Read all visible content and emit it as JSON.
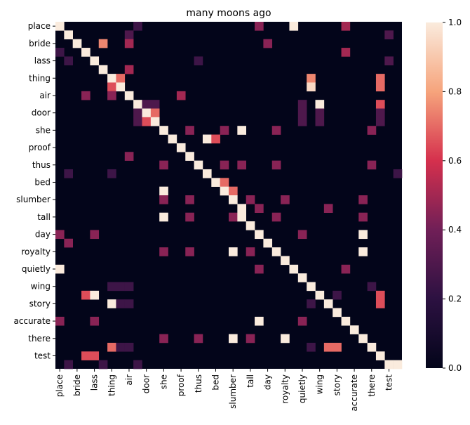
{
  "chart_data": {
    "type": "heatmap",
    "title": "many moons ago",
    "xlabel": "",
    "ylabel": "",
    "labels": [
      "place",
      "bride",
      "lass",
      "thing",
      "air",
      "door",
      "she",
      "proof",
      "thus",
      "bed",
      "slumber",
      "tall",
      "day",
      "royalty",
      "quietly",
      "wing",
      "story",
      "accurate",
      "there",
      "test"
    ],
    "tick_labels": [
      "place",
      "bride",
      "lass",
      "thing",
      "air",
      "door",
      "she",
      "proof",
      "thus",
      "bed",
      "slumber",
      "tall",
      "day",
      "royalty",
      "quietly",
      "wing",
      "story",
      "accurate",
      "there",
      "test"
    ],
    "n_rows": 40,
    "n_cols": 40,
    "cells": [
      [
        0,
        0,
        1.0
      ],
      [
        0,
        9,
        0.25
      ],
      [
        0,
        23,
        0.45
      ],
      [
        0,
        27,
        1.0
      ],
      [
        0,
        33,
        0.5
      ],
      [
        1,
        1,
        1.0
      ],
      [
        1,
        8,
        0.3
      ],
      [
        1,
        38,
        0.3
      ],
      [
        2,
        2,
        1.0
      ],
      [
        2,
        5,
        0.75
      ],
      [
        2,
        8,
        0.5
      ],
      [
        2,
        24,
        0.45
      ],
      [
        3,
        0,
        0.25
      ],
      [
        3,
        3,
        1.0
      ],
      [
        3,
        33,
        0.5
      ],
      [
        4,
        1,
        0.25
      ],
      [
        4,
        4,
        1.0
      ],
      [
        4,
        16,
        0.25
      ],
      [
        4,
        38,
        0.3
      ],
      [
        5,
        5,
        1.0
      ],
      [
        5,
        8,
        0.5
      ],
      [
        6,
        6,
        1.0
      ],
      [
        6,
        7,
        0.7
      ],
      [
        6,
        29,
        0.75
      ],
      [
        6,
        37,
        0.7
      ],
      [
        7,
        6,
        0.65
      ],
      [
        7,
        7,
        1.0
      ],
      [
        7,
        29,
        0.95
      ],
      [
        7,
        37,
        0.7
      ],
      [
        8,
        3,
        0.45
      ],
      [
        8,
        6,
        0.45
      ],
      [
        8,
        8,
        1.0
      ],
      [
        8,
        14,
        0.5
      ],
      [
        9,
        9,
        1.0
      ],
      [
        9,
        10,
        0.3
      ],
      [
        9,
        11,
        0.3
      ],
      [
        9,
        28,
        0.3
      ],
      [
        9,
        30,
        1.0
      ],
      [
        9,
        37,
        0.65
      ],
      [
        10,
        9,
        0.3
      ],
      [
        10,
        10,
        1.0
      ],
      [
        10,
        11,
        0.7
      ],
      [
        10,
        28,
        0.3
      ],
      [
        10,
        30,
        0.3
      ],
      [
        10,
        37,
        0.3
      ],
      [
        11,
        9,
        0.3
      ],
      [
        11,
        10,
        0.65
      ],
      [
        11,
        11,
        1.0
      ],
      [
        11,
        28,
        0.3
      ],
      [
        11,
        30,
        0.3
      ],
      [
        11,
        37,
        0.3
      ],
      [
        12,
        12,
        1.0
      ],
      [
        12,
        15,
        0.45
      ],
      [
        12,
        19,
        0.45
      ],
      [
        12,
        21,
        1.0
      ],
      [
        12,
        25,
        0.45
      ],
      [
        12,
        36,
        0.45
      ],
      [
        13,
        13,
        1.0
      ],
      [
        13,
        17,
        1.0
      ],
      [
        13,
        18,
        0.65
      ],
      [
        14,
        14,
        1.0
      ],
      [
        15,
        8,
        0.45
      ],
      [
        15,
        15,
        1.0
      ],
      [
        16,
        12,
        0.45
      ],
      [
        16,
        16,
        1.0
      ],
      [
        16,
        19,
        0.45
      ],
      [
        16,
        21,
        0.45
      ],
      [
        16,
        25,
        0.45
      ],
      [
        16,
        36,
        0.45
      ],
      [
        17,
        1,
        0.25
      ],
      [
        17,
        6,
        0.25
      ],
      [
        17,
        17,
        1.0
      ],
      [
        17,
        39,
        0.25
      ],
      [
        18,
        18,
        1.0
      ],
      [
        18,
        19,
        0.7
      ],
      [
        19,
        12,
        1.0
      ],
      [
        19,
        19,
        1.0
      ],
      [
        19,
        20,
        0.7
      ],
      [
        20,
        12,
        0.45
      ],
      [
        20,
        15,
        0.45
      ],
      [
        20,
        20,
        1.0
      ],
      [
        20,
        22,
        0.45
      ],
      [
        20,
        26,
        0.45
      ],
      [
        20,
        35,
        0.45
      ],
      [
        21,
        21,
        1.0
      ],
      [
        21,
        23,
        0.45
      ],
      [
        21,
        31,
        0.45
      ],
      [
        22,
        12,
        1.0
      ],
      [
        22,
        15,
        0.45
      ],
      [
        22,
        20,
        0.45
      ],
      [
        22,
        21,
        1.0
      ],
      [
        22,
        25,
        0.45
      ],
      [
        22,
        35,
        0.45
      ],
      [
        23,
        22,
        1.0
      ],
      [
        24,
        0,
        0.45
      ],
      [
        24,
        4,
        0.45
      ],
      [
        24,
        23,
        1.0
      ],
      [
        24,
        28,
        0.45
      ],
      [
        24,
        35,
        1.0
      ],
      [
        25,
        1,
        0.45
      ],
      [
        25,
        24,
        1.0
      ],
      [
        26,
        12,
        0.45
      ],
      [
        26,
        15,
        0.45
      ],
      [
        26,
        20,
        1.0
      ],
      [
        26,
        22,
        0.45
      ],
      [
        26,
        25,
        1.0
      ],
      [
        26,
        35,
        1.0
      ],
      [
        27,
        26,
        1.0
      ],
      [
        28,
        0,
        1.0
      ],
      [
        28,
        23,
        0.45
      ],
      [
        28,
        27,
        1.0
      ],
      [
        28,
        33,
        0.45
      ],
      [
        29,
        28,
        1.0
      ],
      [
        30,
        6,
        0.25
      ],
      [
        30,
        7,
        0.25
      ],
      [
        30,
        8,
        0.25
      ],
      [
        30,
        29,
        1.0
      ],
      [
        30,
        36,
        0.25
      ],
      [
        31,
        3,
        0.65
      ],
      [
        31,
        4,
        1.0
      ],
      [
        31,
        30,
        1.0
      ],
      [
        31,
        32,
        0.25
      ],
      [
        31,
        37,
        0.65
      ],
      [
        32,
        6,
        1.0
      ],
      [
        32,
        7,
        0.25
      ],
      [
        32,
        8,
        0.25
      ],
      [
        32,
        29,
        0.25
      ],
      [
        32,
        31,
        1.0
      ],
      [
        32,
        37,
        0.65
      ],
      [
        33,
        32,
        1.0
      ],
      [
        34,
        0,
        0.45
      ],
      [
        34,
        4,
        0.45
      ],
      [
        34,
        23,
        1.0
      ],
      [
        34,
        28,
        0.45
      ],
      [
        34,
        33,
        1.0
      ],
      [
        35,
        34,
        1.0
      ],
      [
        36,
        12,
        0.45
      ],
      [
        36,
        16,
        0.45
      ],
      [
        36,
        20,
        1.0
      ],
      [
        36,
        22,
        0.45
      ],
      [
        36,
        26,
        1.0
      ],
      [
        36,
        35,
        1.0
      ],
      [
        37,
        6,
        0.7
      ],
      [
        37,
        7,
        0.25
      ],
      [
        37,
        8,
        0.25
      ],
      [
        37,
        29,
        0.25
      ],
      [
        37,
        31,
        0.7
      ],
      [
        37,
        32,
        0.7
      ],
      [
        37,
        36,
        1.0
      ],
      [
        38,
        3,
        0.65
      ],
      [
        38,
        4,
        0.65
      ],
      [
        38,
        37,
        1.0
      ],
      [
        39,
        1,
        0.25
      ],
      [
        39,
        5,
        0.25
      ],
      [
        39,
        9,
        0.25
      ],
      [
        39,
        38,
        1.0
      ],
      [
        39,
        39,
        1.0
      ]
    ],
    "colorbar": {
      "min": 0.0,
      "max": 1.0,
      "ticks": [
        "0.0",
        "0.2",
        "0.4",
        "0.6",
        "0.8",
        "1.0"
      ]
    },
    "colors": {
      "low": "#03051a",
      "high": "#faebdd"
    }
  }
}
